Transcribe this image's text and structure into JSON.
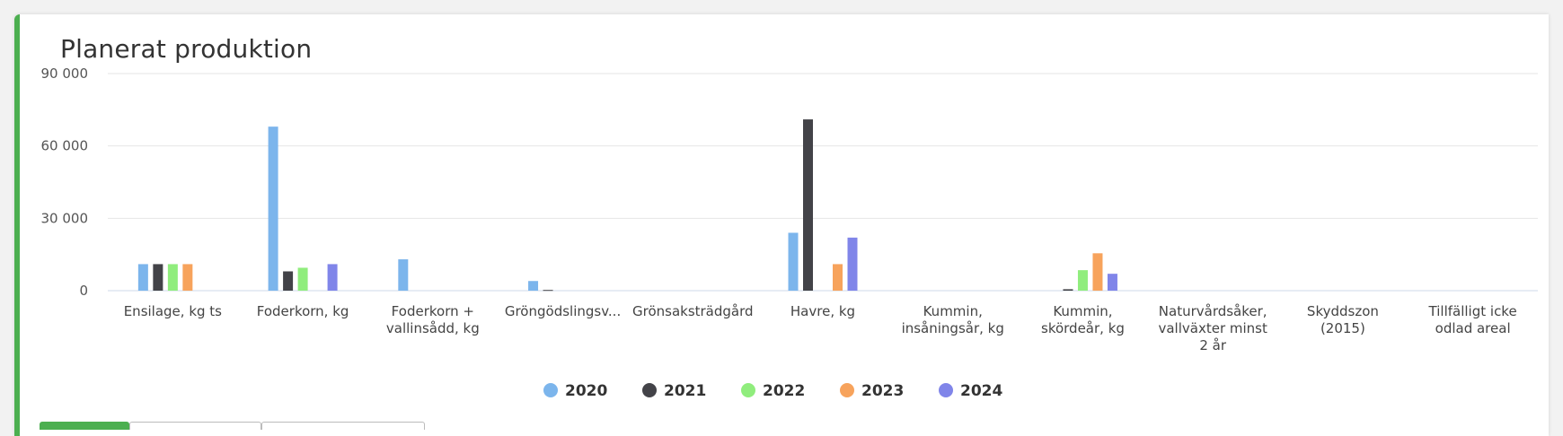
{
  "card": {
    "title": "Planerat produktion",
    "accent_color": "#4caf50"
  },
  "chart_data": {
    "type": "bar",
    "title": "Planerat produktion",
    "xlabel": "",
    "ylabel": "",
    "ylim": [
      0,
      90000
    ],
    "yticks": [
      0,
      30000,
      60000,
      90000
    ],
    "ytick_labels": [
      "0",
      "30 000",
      "60 000",
      "90 000"
    ],
    "grid": true,
    "legend_position": "bottom-center",
    "categories": [
      [
        "Ensilage, kg ts"
      ],
      [
        "Foderkorn, kg"
      ],
      [
        "Foderkorn +",
        "vallinsådd, kg"
      ],
      [
        "Gröngödslingsv..."
      ],
      [
        "Grönsaksträdgård"
      ],
      [
        "Havre, kg"
      ],
      [
        "Kummin,",
        "insåningsår, kg"
      ],
      [
        "Kummin,",
        "skördeår, kg"
      ],
      [
        "Naturvårdsåker,",
        "vallväxter minst",
        "2 år"
      ],
      [
        "Skyddszon",
        "(2015)"
      ],
      [
        "Tillfälligt icke",
        "odlad areal"
      ]
    ],
    "series": [
      {
        "name": "2020",
        "color": "#7cb5ec",
        "values": [
          11000,
          68000,
          13000,
          4000,
          0,
          24000,
          0,
          0,
          0,
          0,
          0
        ]
      },
      {
        "name": "2021",
        "color": "#434348",
        "values": [
          11000,
          8000,
          0,
          300,
          0,
          71000,
          0,
          600,
          0,
          0,
          0
        ]
      },
      {
        "name": "2022",
        "color": "#90ed7d",
        "values": [
          11000,
          9500,
          0,
          0,
          0,
          0,
          0,
          8500,
          0,
          0,
          0
        ]
      },
      {
        "name": "2023",
        "color": "#f7a35c",
        "values": [
          11000,
          0,
          0,
          0,
          0,
          11000,
          0,
          15500,
          0,
          0,
          0
        ]
      },
      {
        "name": "2024",
        "color": "#8085e9",
        "values": [
          0,
          11000,
          0,
          0,
          0,
          22000,
          0,
          7000,
          0,
          0,
          0
        ]
      }
    ]
  }
}
